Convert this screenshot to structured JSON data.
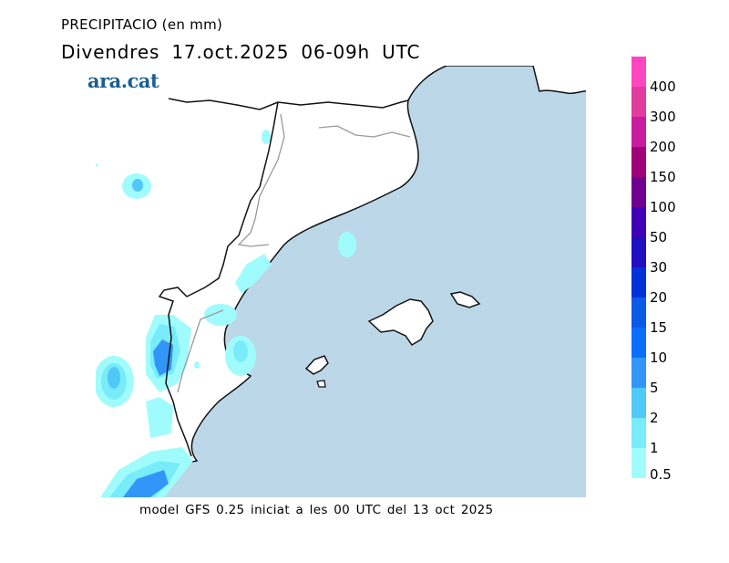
{
  "header": {
    "title": "PRECIPITACIO (en mm)",
    "subtitle": "Divendres  17.oct.2025 06-09h UTC",
    "logo": "ara.cat"
  },
  "legend": {
    "labels": [
      "0.5",
      "1",
      "2",
      "5",
      "10",
      "15",
      "20",
      "30",
      "50",
      "100",
      "150",
      "200",
      "300",
      "400"
    ],
    "colors": [
      "#a0fcfc",
      "#78ecf8",
      "#50c8f8",
      "#3296f8",
      "#0a6efa",
      "#0a5ae8",
      "#0032d8",
      "#2010c0",
      "#4000b8",
      "#700090",
      "#a00078",
      "#c81ca0",
      "#e03ca0",
      "#ff46c0"
    ]
  },
  "map": {
    "sea_color": "#bcd8e8",
    "land_color": "#ffffff"
  },
  "footer": "model GFS 0.25 iniciat a les 00 UTC del 13 oct 2025"
}
